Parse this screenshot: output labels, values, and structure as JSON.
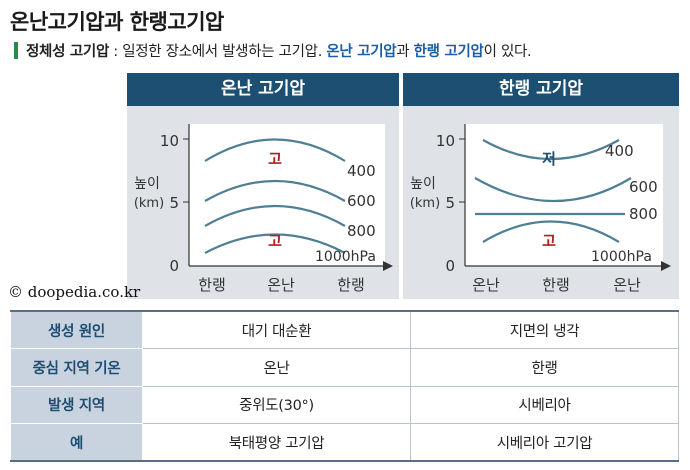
{
  "title": "온난고기압과 한랭고기압",
  "subtitle": {
    "term": "정체성 고기압",
    "colon": " : ",
    "text1": "일정한 장소에서 발생하는 고기압. ",
    "warm_link": "온난 고기압",
    "text2": "과 ",
    "cold_link": "한랭 고기압",
    "text3": "이 있다."
  },
  "diagrams": {
    "warm": {
      "header": "온난 고기압",
      "y_label_1": "높이",
      "y_label_2": "(km)",
      "y_ticks": [
        "10",
        "5",
        "0"
      ],
      "x_ticks": [
        "한랭",
        "온난",
        "한랭"
      ],
      "high_top": "고",
      "high_bottom": "고",
      "isobars": [
        "400",
        "600",
        "800",
        "1000hPa"
      ]
    },
    "cold": {
      "header": "한랭 고기압",
      "y_label_1": "높이",
      "y_label_2": "(km)",
      "y_ticks": [
        "10",
        "5",
        "0"
      ],
      "x_ticks": [
        "온난",
        "한랭",
        "온난"
      ],
      "low_top": "저",
      "high_bottom": "고",
      "isobars": [
        "400",
        "600",
        "800",
        "1000hPa"
      ]
    }
  },
  "credit": "© doopedia.co.kr",
  "table": {
    "rows": [
      {
        "header": "생성 원인",
        "warm": "대기 대순환",
        "cold": "지면의 냉각"
      },
      {
        "header": "중심 지역 기온",
        "warm": "온난",
        "cold": "한랭"
      },
      {
        "header": "발생 지역",
        "warm": "중위도(30°)",
        "cold": "시베리아"
      },
      {
        "header": "예",
        "warm": "북태평양 고기압",
        "cold": "시베리아 고기압"
      }
    ]
  },
  "colors": {
    "header_bg": "#1d4f73",
    "panel_bg": "#dfe3e8",
    "curve": "#4f7f94",
    "pressure_mark": "#b02020",
    "low_mark": "#1d4f73",
    "highlight": "#1b5ea8",
    "accent_bar": "#2a8a4a",
    "table_header_bg": "#c9d3df"
  }
}
